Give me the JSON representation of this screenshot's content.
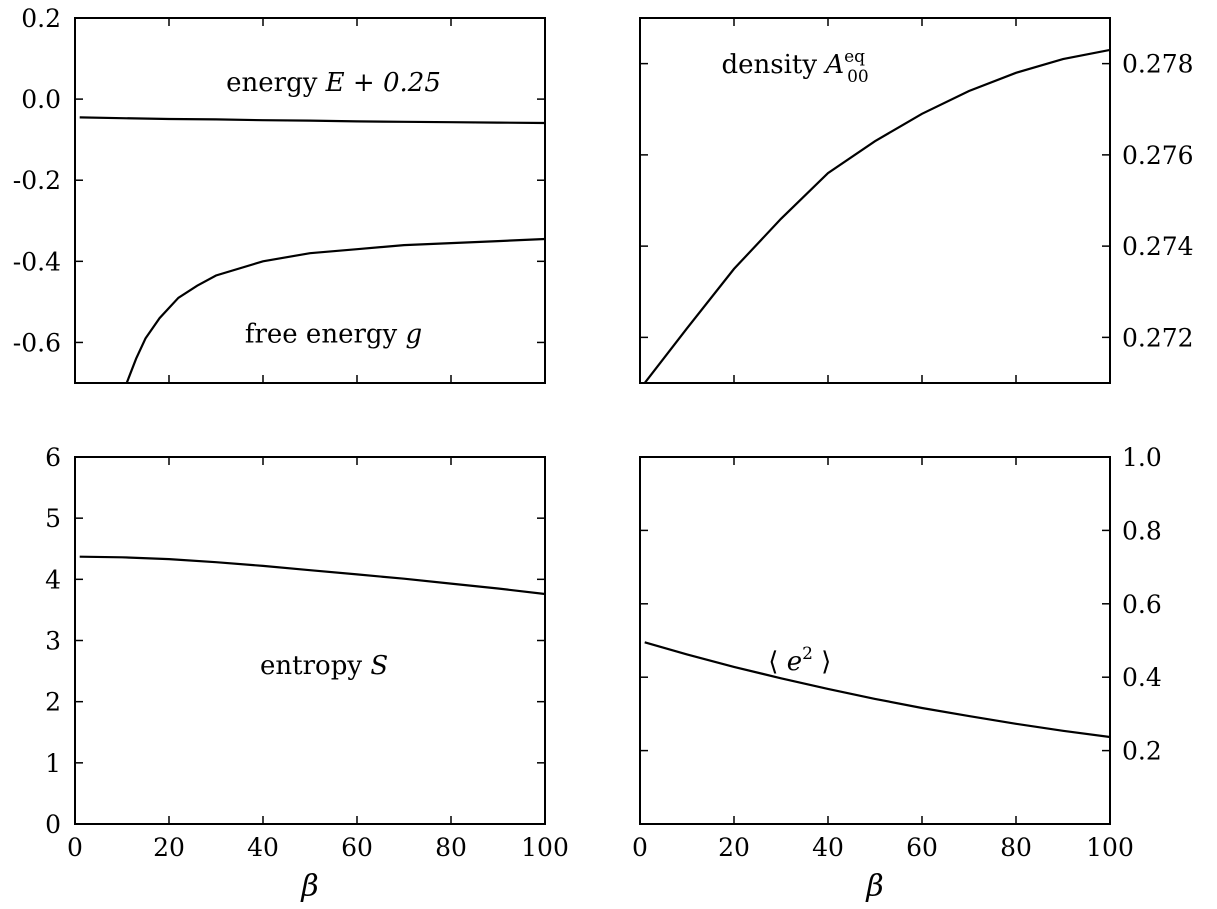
{
  "chart_data": [
    {
      "type": "line",
      "panel": "top-left",
      "x_ticks": [
        0,
        20,
        40,
        60,
        80,
        100
      ],
      "xlim": [
        0,
        100
      ],
      "ylim": [
        -0.7,
        0.2
      ],
      "y_ticks": [
        0.2,
        0.0,
        -0.2,
        -0.4,
        -0.6
      ],
      "y_tick_labels": [
        "0.2",
        "0.0",
        "-0.2",
        "-0.4",
        "-0.6"
      ],
      "y_axis_side": "left",
      "x_tick_labels_visible": false,
      "series": [
        {
          "x": [
            1,
            10,
            20,
            30,
            40,
            50,
            60,
            70,
            80,
            90,
            100
          ],
          "y": [
            -0.045,
            -0.047,
            -0.049,
            -0.05,
            -0.052,
            -0.053,
            -0.055,
            -0.056,
            -0.057,
            -0.058,
            -0.059
          ]
        },
        {
          "x": [
            11,
            13,
            15,
            18,
            22,
            26,
            30,
            40,
            50,
            60,
            70,
            80,
            90,
            100
          ],
          "y": [
            -0.7,
            -0.64,
            -0.59,
            -0.54,
            -0.49,
            -0.46,
            -0.435,
            -0.4,
            -0.38,
            -0.37,
            -0.36,
            -0.355,
            -0.35,
            -0.345
          ]
        }
      ],
      "annotations": [
        {
          "text": "energy ",
          "math": "E + 0.25",
          "x": 55,
          "y": 0.02
        },
        {
          "text": "free energy ",
          "math": "g",
          "x": 55,
          "y": -0.6
        }
      ]
    },
    {
      "type": "line",
      "panel": "top-right",
      "x_ticks": [
        0,
        20,
        40,
        60,
        80,
        100
      ],
      "xlim": [
        0,
        100
      ],
      "ylim": [
        0.271,
        0.279
      ],
      "y_ticks": [
        0.278,
        0.276,
        0.274,
        0.272
      ],
      "y_tick_labels": [
        "0.278",
        "0.276",
        "0.274",
        "0.272"
      ],
      "y_axis_side": "right",
      "x_tick_labels_visible": false,
      "series": [
        {
          "x": [
            1,
            10,
            20,
            30,
            40,
            50,
            60,
            70,
            80,
            90,
            100
          ],
          "y": [
            0.271,
            0.2722,
            0.2735,
            0.2746,
            0.2756,
            0.2763,
            0.2769,
            0.2774,
            0.2778,
            0.2781,
            0.2783
          ]
        }
      ],
      "annotations": [
        {
          "text": "density ",
          "math": "A",
          "sub": "00",
          "sup": "eq",
          "x": 33,
          "y": 0.2778
        }
      ]
    },
    {
      "type": "line",
      "panel": "bottom-left",
      "xlabel": "β",
      "x_ticks": [
        0,
        20,
        40,
        60,
        80,
        100
      ],
      "xlim": [
        0,
        100
      ],
      "ylim": [
        0,
        6
      ],
      "y_ticks": [
        6,
        5,
        4,
        3,
        2,
        1,
        0
      ],
      "y_tick_labels": [
        "6",
        "5",
        "4",
        "3",
        "2",
        "1",
        "0"
      ],
      "y_axis_side": "left",
      "x_tick_labels_visible": true,
      "series": [
        {
          "x": [
            1,
            10,
            20,
            30,
            40,
            50,
            60,
            70,
            80,
            90,
            100
          ],
          "y": [
            4.37,
            4.36,
            4.33,
            4.28,
            4.22,
            4.15,
            4.08,
            4.01,
            3.93,
            3.85,
            3.76
          ]
        }
      ],
      "annotations": [
        {
          "text": "entropy ",
          "math": "S",
          "x": 53,
          "y": 2.45
        }
      ]
    },
    {
      "type": "line",
      "panel": "bottom-right",
      "xlabel": "β",
      "x_ticks": [
        0,
        20,
        40,
        60,
        80,
        100
      ],
      "xlim": [
        0,
        100
      ],
      "ylim": [
        0,
        1.0
      ],
      "y_ticks": [
        1.0,
        0.8,
        0.6,
        0.4,
        0.2
      ],
      "y_tick_labels": [
        "1.0",
        "0.8",
        "0.6",
        "0.4",
        "0.2"
      ],
      "y_axis_side": "right",
      "x_tick_labels_visible": true,
      "series": [
        {
          "x": [
            1,
            10,
            20,
            30,
            40,
            50,
            60,
            70,
            80,
            90,
            100
          ],
          "y": [
            0.495,
            0.462,
            0.428,
            0.397,
            0.368,
            0.341,
            0.316,
            0.294,
            0.273,
            0.254,
            0.237
          ]
        }
      ],
      "annotations": [
        {
          "text": "⟨ ",
          "math": "e",
          "sup": "2",
          "tail": " ⟩",
          "x": 34,
          "y": 0.42
        }
      ]
    }
  ]
}
